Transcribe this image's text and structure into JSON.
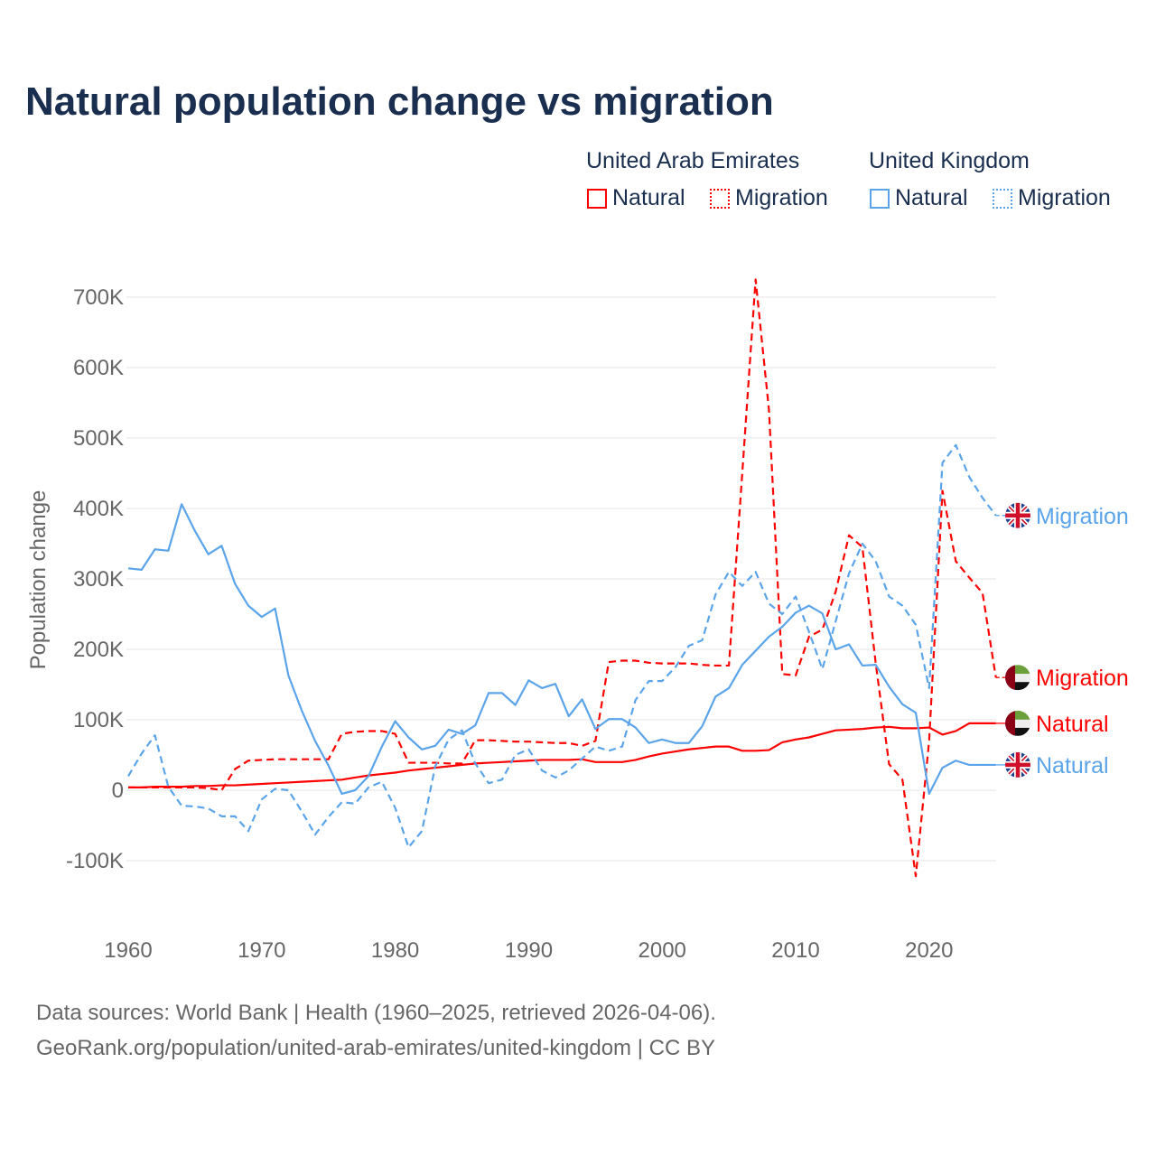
{
  "chart_data": {
    "type": "line",
    "title": "Natural population change vs migration",
    "ylabel": "Population change",
    "xlabel": "",
    "xlim": [
      1960,
      2025
    ],
    "ylim": [
      -150000,
      720000
    ],
    "x_ticks": [
      "1960",
      "1970",
      "1980",
      "1990",
      "2000",
      "2010",
      "2020"
    ],
    "y_ticks": [
      {
        "v": -100000,
        "label": "-100K"
      },
      {
        "v": 0,
        "label": "0"
      },
      {
        "v": 100000,
        "label": "100K"
      },
      {
        "v": 200000,
        "label": "200K"
      },
      {
        "v": 300000,
        "label": "300K"
      },
      {
        "v": 400000,
        "label": "400K"
      },
      {
        "v": 500000,
        "label": "500K"
      },
      {
        "v": 600000,
        "label": "600K"
      },
      {
        "v": 700000,
        "label": "700K"
      }
    ],
    "grid": true,
    "legend": {
      "groups": [
        {
          "country": "United Arab Emirates",
          "items": [
            "Natural",
            "Migration"
          ]
        },
        {
          "country": "United Kingdom",
          "items": [
            "Natural",
            "Migration"
          ]
        }
      ],
      "placement": "top-right"
    },
    "x_start": 1960,
    "series": [
      {
        "name": "UAE Natural",
        "end_label": "Natural",
        "flag": "uae",
        "color": "#ff0000",
        "dash": false,
        "values_k": [
          4,
          4,
          5,
          5,
          5,
          6,
          6,
          7,
          7,
          8,
          9,
          10,
          11,
          12,
          13,
          14,
          15,
          18,
          21,
          23,
          25,
          28,
          30,
          32,
          34,
          36,
          38,
          39,
          40,
          41,
          42,
          43,
          43,
          43,
          44,
          40,
          40,
          40,
          43,
          48,
          52,
          55,
          58,
          60,
          62,
          62,
          56,
          56,
          57,
          68,
          72,
          75,
          80,
          85,
          86,
          87,
          89,
          90,
          88,
          88,
          89,
          79,
          84,
          95,
          95,
          95
        ]
      },
      {
        "name": "UAE Migration",
        "end_label": "Migration",
        "flag": "uae",
        "color": "#ff0000",
        "dash": true,
        "values_k": [
          4,
          4,
          4,
          4,
          4,
          4,
          3,
          0,
          30,
          42,
          43,
          44,
          44,
          44,
          44,
          44,
          80,
          83,
          84,
          84,
          80,
          39,
          39,
          39,
          38,
          38,
          71,
          71,
          70,
          69,
          69,
          68,
          67,
          67,
          63,
          70,
          182,
          184,
          184,
          181,
          180,
          180,
          180,
          178,
          177,
          177,
          450,
          725,
          540,
          165,
          163,
          218,
          228,
          282,
          362,
          345,
          180,
          37,
          15,
          -122,
          70,
          425,
          325,
          302,
          280,
          160
        ]
      },
      {
        "name": "UK Natural",
        "end_label": "Natural",
        "flag": "uk",
        "color": "#5ba4ea",
        "dash": false,
        "values_k": [
          315,
          313,
          342,
          340,
          406,
          368,
          335,
          347,
          293,
          262,
          246,
          258,
          163,
          113,
          70,
          35,
          -5,
          0,
          20,
          62,
          98,
          75,
          58,
          63,
          86,
          80,
          92,
          138,
          138,
          121,
          156,
          145,
          151,
          105,
          129,
          87,
          101,
          101,
          89,
          67,
          72,
          67,
          67,
          91,
          133,
          145,
          178,
          198,
          218,
          232,
          252,
          262,
          251,
          200,
          207,
          177,
          178,
          147,
          122,
          110,
          -5,
          32,
          42,
          36,
          36,
          36
        ]
      },
      {
        "name": "UK Migration",
        "end_label": "Migration",
        "flag": "uk",
        "color": "#5ba4ea",
        "dash": true,
        "values_k": [
          20,
          52,
          78,
          5,
          -22,
          -23,
          -26,
          -37,
          -37,
          -58,
          -13,
          2,
          0,
          -30,
          -63,
          -38,
          -17,
          -19,
          4,
          12,
          -25,
          -81,
          -58,
          34,
          72,
          85,
          38,
          10,
          15,
          50,
          58,
          28,
          18,
          28,
          45,
          62,
          56,
          62,
          128,
          155,
          155,
          175,
          205,
          213,
          278,
          310,
          290,
          310,
          265,
          250,
          275,
          225,
          172,
          240,
          308,
          350,
          325,
          275,
          262,
          235,
          145,
          465,
          490,
          445,
          415,
          390
        ]
      }
    ]
  },
  "footer": {
    "line1": "Data sources: World Bank | Health (1960–2025, retrieved 2026-04-06).",
    "line2": "GeoRank.org/population/united-arab-emirates/united-kingdom | CC BY"
  }
}
